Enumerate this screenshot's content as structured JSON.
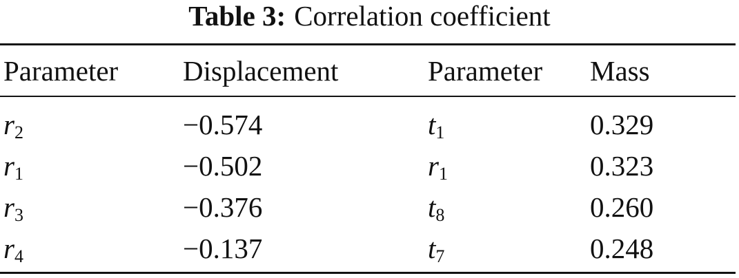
{
  "table": {
    "caption": {
      "label": "Table 3:",
      "text": "Correlation coefficient"
    },
    "header": [
      "Parameter",
      "Displacement",
      "Parameter",
      "Mass"
    ],
    "rows": [
      [
        {
          "symbol": "r",
          "sub": "2"
        },
        "−0.574",
        {
          "symbol": "t",
          "sub": "1"
        },
        "0.329"
      ],
      [
        {
          "symbol": "r",
          "sub": "1"
        },
        "−0.502",
        {
          "symbol": "r",
          "sub": "1"
        },
        "0.323"
      ],
      [
        {
          "symbol": "r",
          "sub": "3"
        },
        "−0.376",
        {
          "symbol": "t",
          "sub": "8"
        },
        "0.260"
      ],
      [
        {
          "symbol": "r",
          "sub": "4"
        },
        "−0.137",
        {
          "symbol": "t",
          "sub": "7"
        },
        "0.248"
      ]
    ]
  }
}
